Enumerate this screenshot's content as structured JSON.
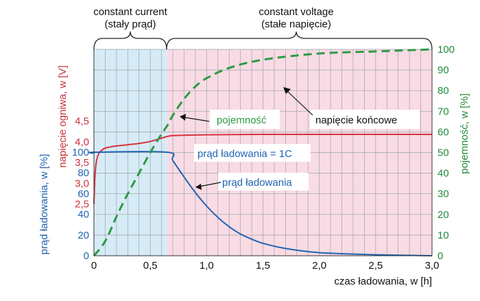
{
  "chart_data": {
    "type": "line",
    "phase_labels": {
      "cc_line1": "constant current",
      "cc_line2": "(stały prąd)",
      "cv_line1": "constant voltage",
      "cv_line2": "(stałe napięcie)"
    },
    "phases": [
      {
        "name": "constant current",
        "x_range": [
          0,
          0.65
        ],
        "color": "#d6ebf6"
      },
      {
        "name": "constant voltage",
        "x_range": [
          0.65,
          3.0
        ],
        "color": "#f9dbe4"
      }
    ],
    "x_axis": {
      "label": "czas ładowania, w [h]",
      "range": [
        0,
        3.0
      ],
      "ticks": [
        "0",
        "0,5",
        "1,0",
        "1,5",
        "2,0",
        "2,5",
        "3,0"
      ],
      "tick_values": [
        0,
        0.5,
        1.0,
        1.5,
        2.0,
        2.5,
        3.0
      ]
    },
    "y_axis_voltage": {
      "label": "napięcie ogniwa, w [V]",
      "color": "#c8323c",
      "ticks": [
        "2,5",
        "3,0",
        "3,5",
        "4,0",
        "4,5"
      ],
      "tick_values": [
        2.5,
        3.0,
        3.5,
        4.0,
        4.5
      ]
    },
    "y_axis_current": {
      "label": "prąd ładowania, w [%]",
      "color": "#1f63b0",
      "ticks": [
        "0",
        "20",
        "40",
        "60",
        "80",
        "100"
      ],
      "tick_values": [
        0,
        20,
        40,
        60,
        80,
        100
      ]
    },
    "y_axis_capacity": {
      "label": "pojemność, w [%]",
      "color": "#1e8a3a",
      "ticks": [
        "0",
        "10",
        "20",
        "30",
        "40",
        "50",
        "60",
        "70",
        "80",
        "90",
        "100"
      ],
      "tick_values": [
        0,
        10,
        20,
        30,
        40,
        50,
        60,
        70,
        80,
        90,
        100
      ],
      "range": [
        0,
        100
      ]
    },
    "series": [
      {
        "name": "napięcie końcowe",
        "axis": "voltage",
        "color": "#d6323c",
        "x": [
          0,
          0.005,
          0.01,
          0.02,
          0.04,
          0.07,
          0.1,
          0.15,
          0.2,
          0.3,
          0.4,
          0.5,
          0.55,
          0.6,
          0.65,
          0.7,
          0.8,
          1.0,
          1.5,
          2.0,
          2.5,
          3.0
        ],
        "y": [
          2.5,
          2.9,
          3.2,
          3.5,
          3.7,
          3.8,
          3.85,
          3.88,
          3.9,
          3.93,
          3.96,
          4.01,
          4.05,
          4.09,
          4.13,
          4.15,
          4.16,
          4.17,
          4.18,
          4.18,
          4.18,
          4.18
        ]
      },
      {
        "name": "prąd ładowania",
        "axis": "current",
        "color": "#1f63b0",
        "x": [
          0,
          0.01,
          0.65,
          0.7,
          0.8,
          0.9,
          1.0,
          1.1,
          1.2,
          1.3,
          1.4,
          1.5,
          1.7,
          2.0,
          2.5,
          3.0
        ],
        "y": [
          99,
          100,
          100,
          92,
          76,
          61,
          48,
          37,
          28,
          21,
          16,
          12,
          7,
          3,
          1,
          0
        ]
      },
      {
        "name": "pojemność",
        "axis": "capacity",
        "color": "#2c9a45",
        "dashed": true,
        "x": [
          0,
          0.1,
          0.2,
          0.3,
          0.4,
          0.5,
          0.6,
          0.65,
          0.7,
          0.8,
          0.9,
          1.0,
          1.2,
          1.5,
          2.0,
          2.5,
          3.0
        ],
        "y": [
          0,
          7,
          19,
          30,
          40,
          50,
          59,
          63,
          68,
          76,
          82,
          86,
          91,
          95,
          98,
          99,
          100
        ]
      }
    ],
    "annotations": {
      "capacity": "pojemność",
      "end_voltage": "napięcie końcowe",
      "current_rate": "prąd ładowania = 1C",
      "charging_current": "prąd ładowania"
    }
  }
}
